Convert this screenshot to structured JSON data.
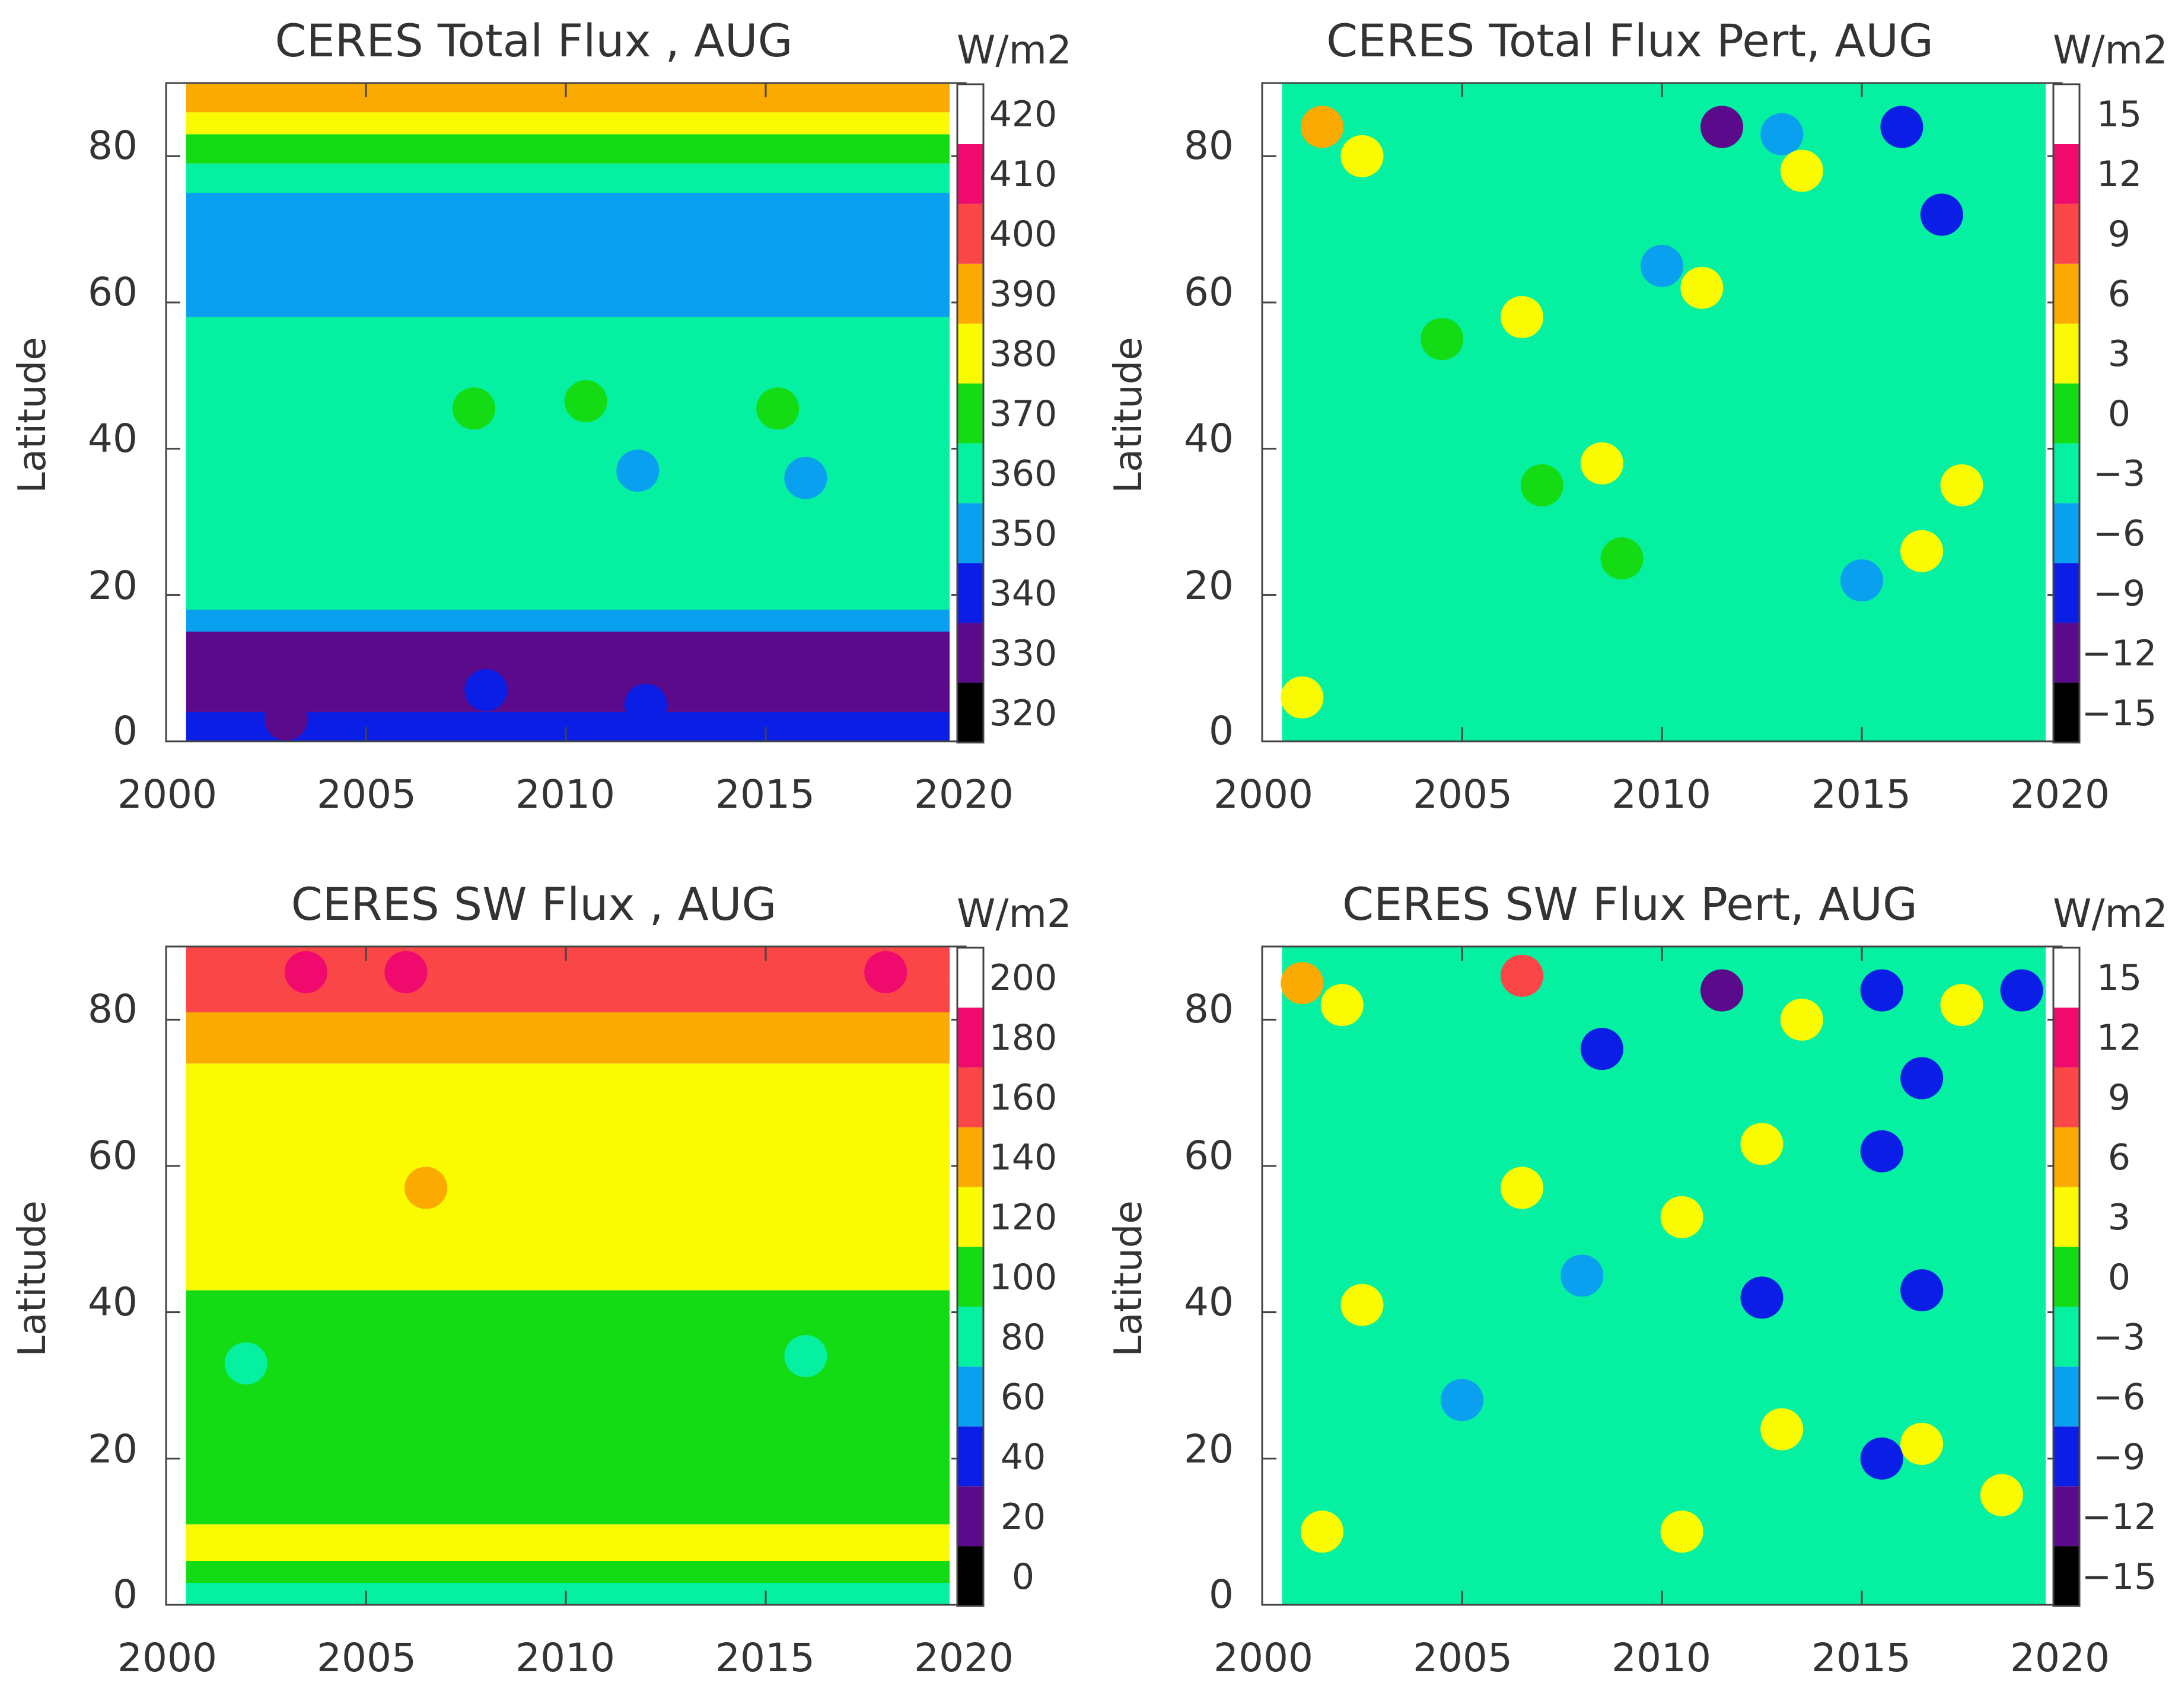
{
  "chart_data": [
    {
      "type": "heatmap",
      "title": "CERES Total Flux , AUG",
      "xlabel": "",
      "ylabel": "Latitude",
      "xlim": [
        2000,
        2020
      ],
      "ylim": [
        0,
        90
      ],
      "x_ticks": [
        "2000",
        "2005",
        "2010",
        "2015",
        "2020"
      ],
      "y_ticks": [
        "0",
        "20",
        "40",
        "60",
        "80"
      ],
      "data_range": [
        2000.5,
        2019.6
      ],
      "colorbar": {
        "unit": "W/m2",
        "labels": [
          "320",
          "330",
          "340",
          "350",
          "360",
          "370",
          "380",
          "390",
          "400",
          "410",
          "420"
        ],
        "colors": [
          "#000000",
          "#5a0a8a",
          "#0a1ee6",
          "#0aa0f0",
          "#05f0a0",
          "#14dc14",
          "#fafa00",
          "#faaa00",
          "#fa4646",
          "#f00a6e",
          "#ffffff"
        ]
      },
      "bands": [
        {
          "lat": [
            0,
            4
          ],
          "value": 345
        },
        {
          "lat": [
            4,
            15
          ],
          "value": 338
        },
        {
          "lat": [
            15,
            18
          ],
          "value": 355
        },
        {
          "lat": [
            18,
            58
          ],
          "value": 365
        },
        {
          "lat": [
            58,
            75
          ],
          "value": 358
        },
        {
          "lat": [
            75,
            79
          ],
          "value": 365
        },
        {
          "lat": [
            79,
            83
          ],
          "value": 378
        },
        {
          "lat": [
            83,
            86
          ],
          "value": 388
        },
        {
          "lat": [
            86,
            90
          ],
          "value": 395
        }
      ],
      "blobs": [
        {
          "year": 2007.7,
          "lat": 45.5,
          "value": 375
        },
        {
          "year": 2010.5,
          "lat": 46.5,
          "value": 375
        },
        {
          "year": 2015.3,
          "lat": 45.5,
          "value": 375
        },
        {
          "year": 2003.0,
          "lat": 3.0,
          "value": 335
        },
        {
          "year": 2008.0,
          "lat": 7.0,
          "value": 345
        },
        {
          "year": 2012.0,
          "lat": 5.0,
          "value": 345
        },
        {
          "year": 2016.0,
          "lat": 36.0,
          "value": 358
        },
        {
          "year": 2011.8,
          "lat": 37.0,
          "value": 358
        },
        {
          "year": 2016.5,
          "lat": 70.0,
          "value": 355
        },
        {
          "year": 2009.2,
          "lat": 63.5,
          "value": 355
        }
      ]
    },
    {
      "type": "heatmap",
      "title": "CERES Total Flux  Pert, AUG",
      "xlabel": "",
      "ylabel": "Latitude",
      "xlim": [
        2000,
        2020
      ],
      "ylim": [
        0,
        90
      ],
      "x_ticks": [
        "2000",
        "2005",
        "2010",
        "2015",
        "2020"
      ],
      "y_ticks": [
        "0",
        "20",
        "40",
        "60",
        "80"
      ],
      "data_range": [
        2000.5,
        2019.6
      ],
      "colorbar": {
        "unit": "W/m2",
        "labels": [
          "−15",
          "−12",
          "−9",
          "−6",
          "−3",
          "0",
          "3",
          "6",
          "9",
          "12",
          "15"
        ],
        "colors": [
          "#000000",
          "#5a0a8a",
          "#0a1ee6",
          "#0aa0f0",
          "#05f0a0",
          "#14dc14",
          "#fafa00",
          "#faaa00",
          "#fa4646",
          "#f00a6e",
          "#ffffff"
        ]
      },
      "bands": [
        {
          "lat": [
            0,
            90
          ],
          "value": -1.5
        }
      ],
      "blobs": [
        {
          "year": 2002.5,
          "lat": 80.0,
          "value": 4.5
        },
        {
          "year": 2001.5,
          "lat": 84.0,
          "value": 7.0
        },
        {
          "year": 2004.5,
          "lat": 55.0,
          "value": 1.5
        },
        {
          "year": 2007.0,
          "lat": 35.0,
          "value": 1.5
        },
        {
          "year": 2001.0,
          "lat": 6.0,
          "value": 4.0
        },
        {
          "year": 2006.5,
          "lat": 58.0,
          "value": 4.0
        },
        {
          "year": 2011.0,
          "lat": 62.0,
          "value": 4.0
        },
        {
          "year": 2008.5,
          "lat": 38.0,
          "value": 4.0
        },
        {
          "year": 2011.5,
          "lat": 84.0,
          "value": -9.5
        },
        {
          "year": 2013.0,
          "lat": 83.0,
          "value": -5.0
        },
        {
          "year": 2016.0,
          "lat": 84.0,
          "value": -9.0
        },
        {
          "year": 2017.0,
          "lat": 72.0,
          "value": -8.0
        },
        {
          "year": 2013.5,
          "lat": 78.0,
          "value": 4.0
        },
        {
          "year": 2009.0,
          "lat": 25.0,
          "value": 1.0
        },
        {
          "year": 2016.5,
          "lat": 26.0,
          "value": 4.0
        },
        {
          "year": 2017.5,
          "lat": 35.0,
          "value": 3.5
        },
        {
          "year": 2015.0,
          "lat": 22.0,
          "value": -5.0
        },
        {
          "year": 2010.0,
          "lat": 65.0,
          "value": -4.5
        }
      ]
    },
    {
      "type": "heatmap",
      "title": "CERES SW Flux , AUG",
      "xlabel": "",
      "ylabel": "Latitude",
      "xlim": [
        2000,
        2020
      ],
      "ylim": [
        0,
        90
      ],
      "x_ticks": [
        "2000",
        "2005",
        "2010",
        "2015",
        "2020"
      ],
      "y_ticks": [
        "0",
        "20",
        "40",
        "60",
        "80"
      ],
      "data_range": [
        2000.5,
        2019.6
      ],
      "colorbar": {
        "unit": "W/m2",
        "labels": [
          "0",
          "20",
          "40",
          "60",
          "80",
          "100",
          "120",
          "140",
          "160",
          "180",
          "200"
        ],
        "colors": [
          "#000000",
          "#5a0a8a",
          "#0a1ee6",
          "#0aa0f0",
          "#05f0a0",
          "#14dc14",
          "#fafa00",
          "#faaa00",
          "#fa4646",
          "#f00a6e",
          "#ffffff"
        ]
      },
      "bands": [
        {
          "lat": [
            0,
            3
          ],
          "value": 90
        },
        {
          "lat": [
            3,
            6
          ],
          "value": 110
        },
        {
          "lat": [
            6,
            11
          ],
          "value": 125
        },
        {
          "lat": [
            11,
            43
          ],
          "value": 110
        },
        {
          "lat": [
            43,
            74
          ],
          "value": 130
        },
        {
          "lat": [
            74,
            81
          ],
          "value": 145
        },
        {
          "lat": [
            81,
            85
          ],
          "value": 165
        },
        {
          "lat": [
            85,
            90
          ],
          "value": 175
        }
      ],
      "blobs": [
        {
          "year": 2003.5,
          "lat": 86.5,
          "value": 185
        },
        {
          "year": 2006.0,
          "lat": 86.5,
          "value": 185
        },
        {
          "year": 2018.0,
          "lat": 86.5,
          "value": 185
        },
        {
          "year": 2016.0,
          "lat": 34.0,
          "value": 90
        },
        {
          "year": 2002.0,
          "lat": 33.0,
          "value": 90
        },
        {
          "year": 2006.5,
          "lat": 57.0,
          "value": 145
        }
      ]
    },
    {
      "type": "heatmap",
      "title": "CERES SW Flux  Pert, AUG",
      "xlabel": "",
      "ylabel": "Latitude",
      "xlim": [
        2000,
        2020
      ],
      "ylim": [
        0,
        90
      ],
      "x_ticks": [
        "2000",
        "2005",
        "2010",
        "2015",
        "2020"
      ],
      "y_ticks": [
        "0",
        "20",
        "40",
        "60",
        "80"
      ],
      "data_range": [
        2000.5,
        2019.6
      ],
      "colorbar": {
        "unit": "W/m2",
        "labels": [
          "−15",
          "−12",
          "−9",
          "−6",
          "−3",
          "0",
          "3",
          "6",
          "9",
          "12",
          "15"
        ],
        "colors": [
          "#000000",
          "#5a0a8a",
          "#0a1ee6",
          "#0aa0f0",
          "#05f0a0",
          "#14dc14",
          "#fafa00",
          "#faaa00",
          "#fa4646",
          "#f00a6e",
          "#ffffff"
        ]
      },
      "bands": [
        {
          "lat": [
            0,
            90
          ],
          "value": -1.5
        }
      ],
      "blobs": [
        {
          "year": 2002.0,
          "lat": 82.0,
          "value": 5.0
        },
        {
          "year": 2001.0,
          "lat": 85.0,
          "value": 8.0
        },
        {
          "year": 2006.5,
          "lat": 86.0,
          "value": 11.0
        },
        {
          "year": 2011.5,
          "lat": 84.0,
          "value": -10.5
        },
        {
          "year": 2015.5,
          "lat": 84.0,
          "value": -8.0
        },
        {
          "year": 2017.5,
          "lat": 82.0,
          "value": 4.5
        },
        {
          "year": 2019.0,
          "lat": 84.0,
          "value": -7.0
        },
        {
          "year": 2008.5,
          "lat": 76.0,
          "value": -7.0
        },
        {
          "year": 2013.5,
          "lat": 80.0,
          "value": 4.5
        },
        {
          "year": 2016.5,
          "lat": 72.0,
          "value": -7.5
        },
        {
          "year": 2015.5,
          "lat": 62.0,
          "value": -7.0
        },
        {
          "year": 2006.5,
          "lat": 57.0,
          "value": 4.0
        },
        {
          "year": 2012.5,
          "lat": 63.0,
          "value": 3.5
        },
        {
          "year": 2002.5,
          "lat": 41.0,
          "value": 4.0
        },
        {
          "year": 2010.5,
          "lat": 53.0,
          "value": 3.5
        },
        {
          "year": 2016.5,
          "lat": 43.0,
          "value": -6.5
        },
        {
          "year": 2012.5,
          "lat": 42.0,
          "value": -6.5
        },
        {
          "year": 2015.5,
          "lat": 20.0,
          "value": -9.0
        },
        {
          "year": 2016.5,
          "lat": 22.0,
          "value": 5.0
        },
        {
          "year": 2013.0,
          "lat": 24.0,
          "value": 3.5
        },
        {
          "year": 2001.5,
          "lat": 10.0,
          "value": 5.0
        },
        {
          "year": 2010.5,
          "lat": 10.0,
          "value": 5.0
        },
        {
          "year": 2018.5,
          "lat": 15.0,
          "value": 3.5
        },
        {
          "year": 2005.0,
          "lat": 28.0,
          "value": -5.0
        },
        {
          "year": 2008.0,
          "lat": 45.0,
          "value": -4.0
        }
      ]
    }
  ]
}
